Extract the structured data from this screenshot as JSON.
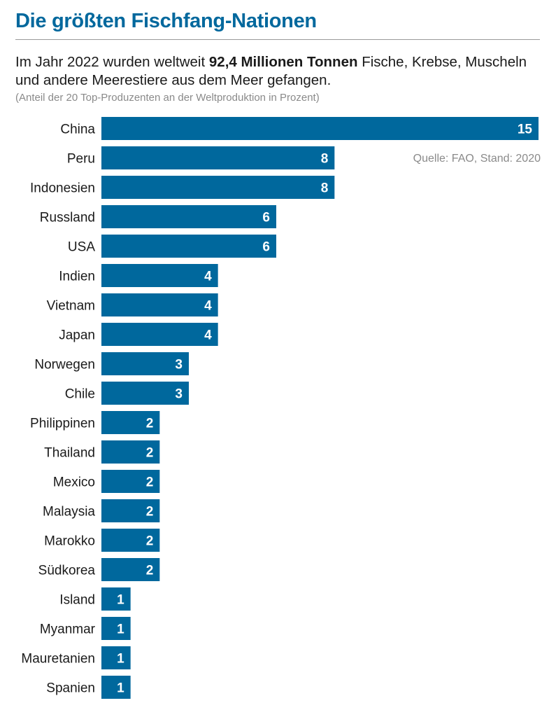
{
  "title": "Die größten Fischfang-Nationen",
  "subtitle": {
    "before": "Im Jahr 2022 wurden weltweit ",
    "bold": "92,4 Millionen Tonnen",
    "after": " Fische, Krebse, Muscheln und andere Meerestiere aus dem Meer gefangen."
  },
  "note": "(Anteil der 20 Top-Produzenten an der Weltproduktion in Prozent)",
  "source": "Quelle: FAO, Stand: 2020",
  "colors": {
    "bar": "#00689d",
    "title": "#00689d",
    "value_text": "#ffffff"
  },
  "chart_data": {
    "type": "bar",
    "orientation": "horizontal",
    "categories": [
      "China",
      "Peru",
      "Indonesien",
      "Russland",
      "USA",
      "Indien",
      "Vietnam",
      "Japan",
      "Norwegen",
      "Chile",
      "Philippinen",
      "Thailand",
      "Mexico",
      "Malaysia",
      "Marokko",
      "Südkorea",
      "Island",
      "Myanmar",
      "Mauretanien",
      "Spanien"
    ],
    "values": [
      15,
      8,
      8,
      6,
      6,
      4,
      4,
      4,
      3,
      3,
      2,
      2,
      2,
      2,
      2,
      2,
      1,
      1,
      1,
      1
    ],
    "data_labels": [
      "15",
      "8",
      "8",
      "6",
      "6",
      "4",
      "4",
      "4",
      "3",
      "3",
      "2",
      "2",
      "2",
      "2",
      "2",
      "2",
      "1",
      "1",
      "1",
      "1"
    ],
    "xlim": [
      0,
      15
    ],
    "grid": false,
    "axes_visible": false
  }
}
